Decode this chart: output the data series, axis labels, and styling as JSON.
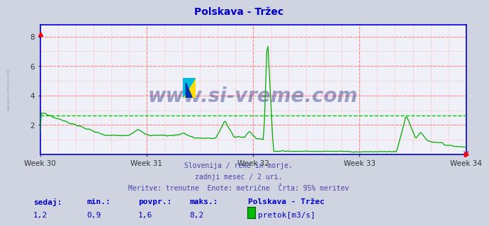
{
  "title": "Polskava - Tržec",
  "title_color": "#0000cc",
  "bg_color": "#d0d4e0",
  "plot_bg_color": "#f0f0f8",
  "grid_color_red": "#ff8888",
  "grid_color_pink": "#ffbbbb",
  "line_color": "#00aa00",
  "dashed_line_color": "#00cc00",
  "dashed_line_value": 2.65,
  "axis_color": "#0000cc",
  "x_tick_labels": [
    "Week 30",
    "Week 31",
    "Week 32",
    "Week 33",
    "Week 34"
  ],
  "x_tick_positions": [
    0,
    84,
    168,
    252,
    336
  ],
  "ylim": [
    0,
    8.8
  ],
  "yticks": [
    2,
    4,
    6,
    8
  ],
  "watermark": "www.si-vreme.com",
  "watermark_color": "#000066",
  "subtitle1": "Slovenija / reke in morje.",
  "subtitle2": "zadnji mesec / 2 uri.",
  "subtitle3": "Meritve: trenutne  Enote: metrične  Črta: 95% meritev",
  "subtitle_color": "#4444aa",
  "legend_labels": [
    "sedaj:",
    "min.:",
    "povpr.:",
    "maks.:"
  ],
  "legend_vals": [
    "1,2",
    "0,9",
    "1,6",
    "8,2"
  ],
  "legend_series": "Polskava - Tržec",
  "legend_unit": "pretok[m3/s]",
  "legend_color": "#0000cc",
  "patch_color": "#00bb00",
  "sidebar_text": "www.si-vreme.com",
  "sidebar_color": "#888888"
}
